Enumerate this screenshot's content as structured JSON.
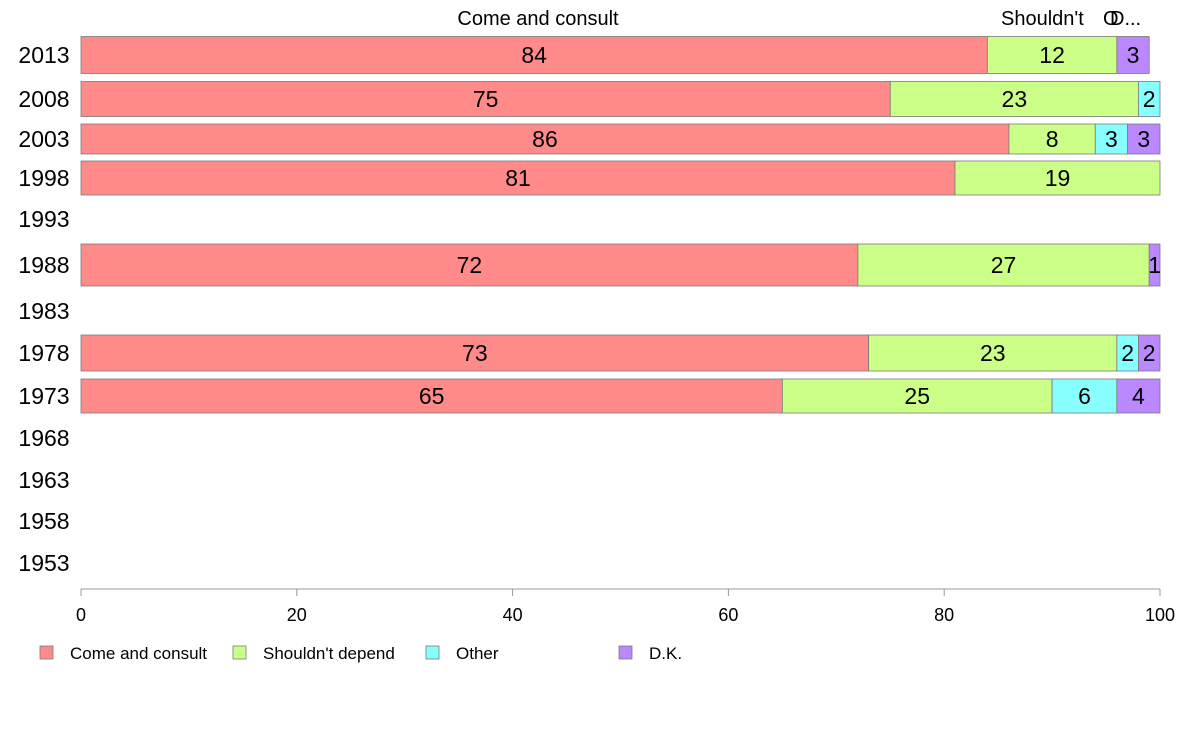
{
  "chart_data": {
    "type": "bar",
    "orientation": "horizontal",
    "stacked": true,
    "categories": [
      "2013",
      "2008",
      "2003",
      "1998",
      "1993",
      "1988",
      "1983",
      "1978",
      "1973",
      "1968",
      "1963",
      "1958",
      "1953"
    ],
    "series": [
      {
        "name": "Come and consult",
        "color": "#ff8a8a",
        "values": [
          84,
          75,
          86,
          81,
          null,
          72,
          null,
          73,
          65,
          null,
          null,
          null,
          null
        ]
      },
      {
        "name": "Shouldn't depend",
        "color": "#ccff88",
        "values": [
          12,
          23,
          8,
          19,
          null,
          27,
          null,
          23,
          25,
          null,
          null,
          null,
          null
        ]
      },
      {
        "name": "Other",
        "color": "#88ffff",
        "values": [
          null,
          2,
          3,
          null,
          null,
          null,
          null,
          2,
          6,
          null,
          null,
          null,
          null
        ]
      },
      {
        "name": "D.K.",
        "color": "#bb88ff",
        "values": [
          3,
          null,
          3,
          null,
          null,
          1,
          null,
          2,
          4,
          null,
          null,
          null,
          null
        ]
      }
    ],
    "top_labels": [
      "Come and consult",
      "Shouldn't depend",
      "Other",
      "D.K."
    ],
    "top_labels_visible": [
      "Come and consult",
      "Shouldn't",
      "O",
      "D..."
    ],
    "xlim": [
      0,
      100
    ],
    "xticks": [
      0,
      20,
      40,
      60,
      80,
      100
    ],
    "grid": false,
    "legend_position": "bottom-left",
    "title": "",
    "xlabel": "",
    "ylabel": ""
  }
}
